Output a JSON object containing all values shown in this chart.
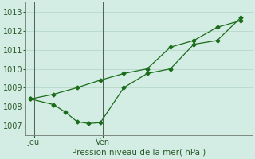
{
  "line1_x": [
    0,
    1,
    2,
    3,
    4,
    5,
    6,
    7,
    8,
    9
  ],
  "line1_y": [
    1008.4,
    1008.65,
    1009.0,
    1009.4,
    1009.75,
    1010.0,
    1011.15,
    1011.5,
    1012.2,
    1012.55
  ],
  "line2_x": [
    0,
    1,
    1.5,
    2,
    2.5,
    3,
    4,
    5,
    6,
    7,
    8,
    9
  ],
  "line2_y": [
    1008.4,
    1008.1,
    1007.7,
    1007.2,
    1007.1,
    1007.15,
    1009.0,
    1009.75,
    1010.0,
    1011.3,
    1011.5,
    1012.7
  ],
  "line_color": "#1a6b1a",
  "bg_color": "#d4ede4",
  "grid_color": "#b8d8cc",
  "tick_label_color": "#2a5a2a",
  "ylim": [
    1006.5,
    1013.5
  ],
  "yticks": [
    1007,
    1008,
    1009,
    1010,
    1011,
    1012,
    1013
  ],
  "xlim": [
    -0.2,
    9.5
  ],
  "xtick_positions": [
    0.15,
    3.1
  ],
  "xtick_labels": [
    "Jeu",
    "Ven"
  ],
  "vline_x": [
    0.15,
    3.1
  ],
  "xlabel": "Pression niveau de la mer( hPa )"
}
